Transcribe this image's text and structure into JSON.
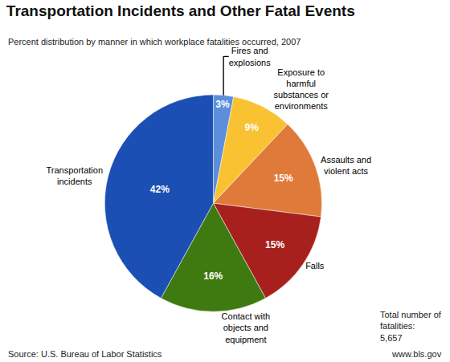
{
  "chart_data": {
    "type": "pie",
    "title": "Transportation Incidents and Other Fatal Events",
    "subtitle": "Percent distribution by manner in which workplace fatalities occurred, 2007",
    "categories": [
      "Fires and explosions",
      "Exposure to harmful substances or environments",
      "Assaults and violent acts",
      "Falls",
      "Contact with objects and equipment",
      "Transportation incidents"
    ],
    "values": [
      3,
      9,
      15,
      15,
      16,
      42
    ],
    "value_labels": [
      "3%",
      "9%",
      "15%",
      "15%",
      "16%",
      "42%"
    ],
    "colors": [
      "#5b8fdc",
      "#f8c232",
      "#e07a3a",
      "#a8201e",
      "#3e7a10",
      "#1c4fb4"
    ],
    "data_labels": true,
    "annotations": [
      "Total number of fatalities: 5,657",
      "Source: U.S. Bureau of Labor Statistics",
      "www.bls.gov"
    ]
  }
}
